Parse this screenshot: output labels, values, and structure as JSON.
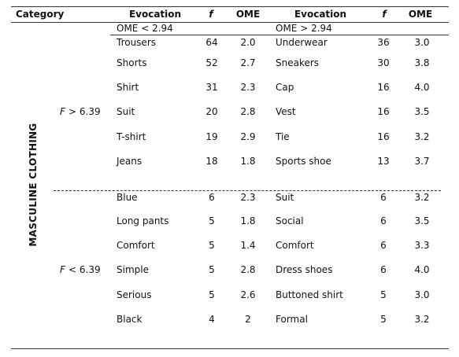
{
  "header": [
    "Category",
    "Evocation",
    "f",
    "OME",
    "Evocation",
    "f",
    "OME"
  ],
  "side_label": "MASCULINE CLOTHING",
  "groups": [
    {
      "condition_var": "F",
      "condition": "> 6.39",
      "left_note": "OME < 2.94",
      "right_note": "OME > 2.94",
      "rows": [
        [
          "Trousers",
          "64",
          "2.0",
          "Underwear",
          "36",
          "3.0"
        ],
        [
          "Shorts",
          "52",
          "2.7",
          "Sneakers",
          "30",
          "3.8"
        ],
        [
          "Shirt",
          "31",
          "2.3",
          "Cap",
          "16",
          "4.0"
        ],
        [
          "Suit",
          "20",
          "2.8",
          "Vest",
          "16",
          "3.5"
        ],
        [
          "T-shirt",
          "19",
          "2.9",
          "Tie",
          "16",
          "3.2"
        ],
        [
          "Jeans",
          "18",
          "1.8",
          "Sports shoe",
          "13",
          "3.7"
        ]
      ]
    },
    {
      "condition_var": "F",
      "condition": "< 6.39",
      "rows": [
        [
          "Blue",
          "6",
          "2.3",
          "Suit",
          "6",
          "3.2"
        ],
        [
          "Long pants",
          "5",
          "1.8",
          "Social",
          "6",
          "3.5"
        ],
        [
          "Comfort",
          "5",
          "1.4",
          "Comfort",
          "6",
          "3.3"
        ],
        [
          "Simple",
          "5",
          "2.8",
          "Dress shoes",
          "6",
          "4.0"
        ],
        [
          "Serious",
          "5",
          "2.6",
          "Buttoned shirt",
          "5",
          "3.0"
        ],
        [
          "Black",
          "4",
          "2",
          "Formal",
          "5",
          "3.2"
        ]
      ]
    }
  ]
}
